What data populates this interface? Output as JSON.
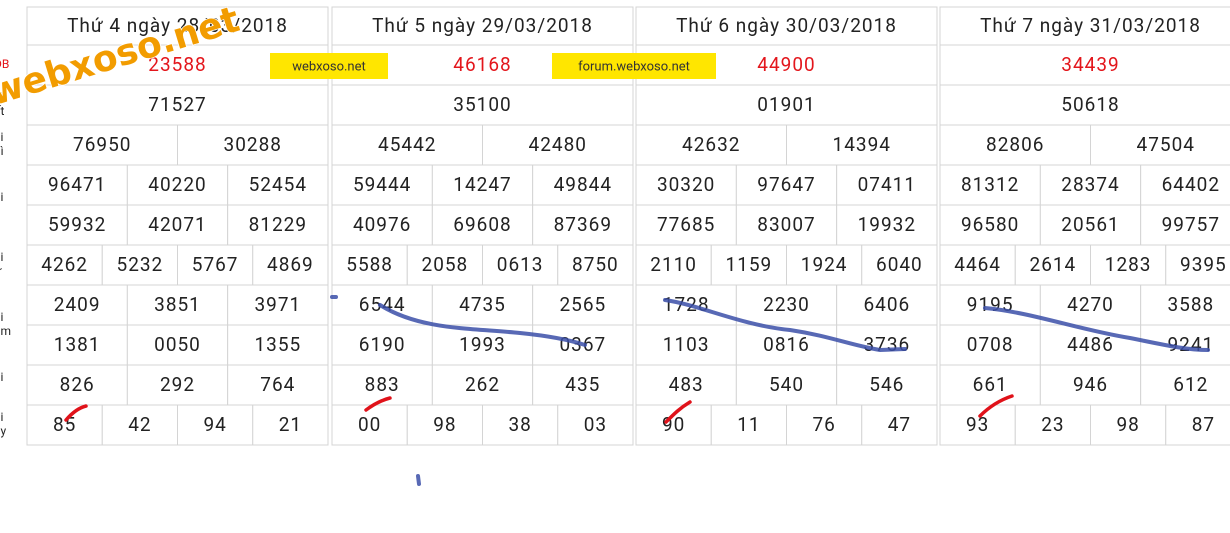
{
  "row_labels": [
    "DB",
    "ải\nất",
    "ải\nhì",
    "ải\na",
    "ải\nư",
    "ải\năm",
    "ải\nu",
    "ải\nảy"
  ],
  "tables": [
    {
      "title": "Thứ 4 ngày 28/03/2018",
      "rows": [
        [
          "23588"
        ],
        [
          "71527"
        ],
        [
          "76950",
          "30288"
        ],
        [
          "96471",
          "40220",
          "52454"
        ],
        [
          "59932",
          "42071",
          "81229"
        ],
        [
          "4262",
          "5232",
          "5767",
          "4869"
        ],
        [
          "2409",
          "3851",
          "3971"
        ],
        [
          "1381",
          "0050",
          "1355"
        ],
        [
          "826",
          "292",
          "764"
        ],
        [
          "85",
          "42",
          "94",
          "21"
        ]
      ]
    },
    {
      "title": "Thứ 5 ngày 29/03/2018",
      "rows": [
        [
          "46168"
        ],
        [
          "35100"
        ],
        [
          "45442",
          "42480"
        ],
        [
          "59444",
          "14247",
          "49844"
        ],
        [
          "40976",
          "69608",
          "87369"
        ],
        [
          "5588",
          "2058",
          "0613",
          "8750"
        ],
        [
          "6544",
          "4735",
          "2565"
        ],
        [
          "6190",
          "1993",
          "0367"
        ],
        [
          "883",
          "262",
          "435"
        ],
        [
          "00",
          "98",
          "38",
          "03"
        ]
      ]
    },
    {
      "title": "Thứ 6 ngày 30/03/2018",
      "rows": [
        [
          "44900"
        ],
        [
          "01901"
        ],
        [
          "42632",
          "14394"
        ],
        [
          "30320",
          "97647",
          "07411"
        ],
        [
          "77685",
          "83007",
          "19932"
        ],
        [
          "2110",
          "1159",
          "1924",
          "6040"
        ],
        [
          "1728",
          "2230",
          "6406"
        ],
        [
          "1103",
          "0816",
          "3736"
        ],
        [
          "483",
          "540",
          "546"
        ],
        [
          "90",
          "11",
          "76",
          "47"
        ]
      ]
    },
    {
      "title": "Thứ 7 ngày 31/03/2018",
      "rows": [
        [
          "34439"
        ],
        [
          "50618"
        ],
        [
          "82806",
          "47504"
        ],
        [
          "81312",
          "28374",
          "64402"
        ],
        [
          "96580",
          "20561",
          "99757"
        ],
        [
          "4464",
          "2614",
          "1283",
          "9395"
        ],
        [
          "9195",
          "4270",
          "3588"
        ],
        [
          "0708",
          "4486",
          "9241"
        ],
        [
          "661",
          "946",
          "612"
        ],
        [
          "93",
          "23",
          "98",
          "87"
        ]
      ]
    }
  ],
  "watermarks": {
    "big": "webxoso.net",
    "box1": "webxoso.net",
    "box2": "forum.webxoso.net"
  }
}
